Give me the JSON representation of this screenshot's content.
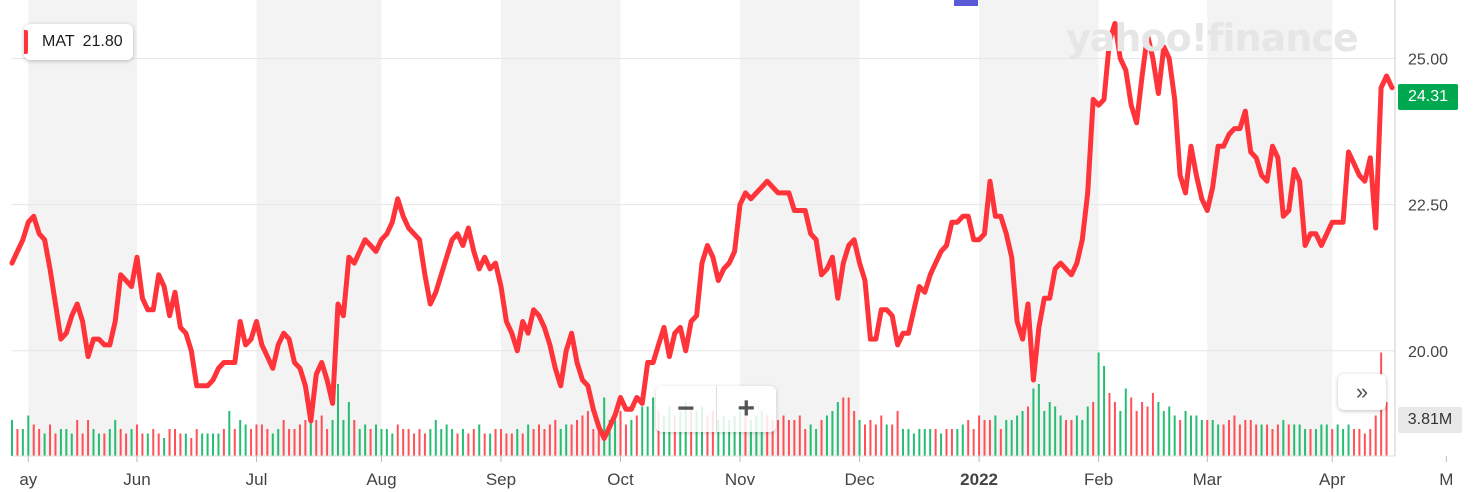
{
  "legend": {
    "symbol": "MAT",
    "value": "21.80",
    "color": "#ff333a"
  },
  "watermark": "yahoo!finance",
  "last_price_badge": "24.31",
  "volume_badge": "3.81M",
  "controls": {
    "zoom_out": "−",
    "zoom_in": "+",
    "scroll_right": "»"
  },
  "colors": {
    "line": "#ff333a",
    "up_volume": "#00b35a",
    "down_volume": "#ff333a",
    "band": "#f3f3f3",
    "badge_green": "#00a84f"
  },
  "chart_data": {
    "type": "line",
    "title": "",
    "xlabel": "",
    "ylabel": "",
    "y_axis_position": "right",
    "ylim": [
      18.2,
      26.0
    ],
    "yticks": [
      "25.00",
      "22.50",
      "20.00"
    ],
    "ytick_values": [
      25.0,
      22.5,
      20.0
    ],
    "xticks": [
      "ay",
      "Jun",
      "Jul",
      "Aug",
      "Sep",
      "Oct",
      "Nov",
      "Dec",
      "2022",
      "Feb",
      "Mar",
      "Apr",
      "M"
    ],
    "xtick_index": [
      3,
      23,
      45,
      68,
      90,
      112,
      134,
      156,
      178,
      200,
      220,
      243,
      264
    ],
    "grid": true,
    "legend_position": "top-left",
    "series": [
      {
        "name": "MAT",
        "values": [
          21.5,
          21.7,
          21.9,
          22.2,
          22.3,
          22.0,
          21.9,
          21.4,
          20.8,
          20.2,
          20.3,
          20.6,
          20.8,
          20.5,
          19.9,
          20.2,
          20.2,
          20.1,
          20.1,
          20.5,
          21.3,
          21.2,
          21.1,
          21.6,
          20.9,
          20.7,
          20.7,
          21.3,
          21.1,
          20.6,
          21.0,
          20.4,
          20.3,
          20.0,
          19.4,
          19.4,
          19.4,
          19.5,
          19.7,
          19.8,
          19.8,
          19.8,
          20.5,
          20.1,
          20.2,
          20.5,
          20.1,
          19.9,
          19.7,
          20.1,
          20.3,
          20.2,
          19.8,
          19.7,
          19.4,
          18.8,
          19.6,
          19.8,
          19.5,
          19.1,
          20.8,
          20.6,
          21.6,
          21.5,
          21.7,
          21.9,
          21.8,
          21.7,
          21.9,
          22.0,
          22.2,
          22.6,
          22.3,
          22.1,
          22.0,
          21.9,
          21.3,
          20.8,
          21.0,
          21.3,
          21.6,
          21.9,
          22.0,
          21.8,
          22.1,
          21.7,
          21.4,
          21.6,
          21.4,
          21.5,
          21.1,
          20.5,
          20.3,
          20.0,
          20.5,
          20.3,
          20.7,
          20.6,
          20.4,
          20.1,
          19.7,
          19.4,
          20.0,
          20.3,
          19.8,
          19.5,
          19.4,
          19.0,
          18.7,
          18.5,
          18.7,
          18.9,
          19.2,
          19.0,
          19.0,
          19.2,
          19.1,
          19.8,
          19.8,
          20.1,
          20.4,
          19.9,
          20.3,
          20.4,
          20.0,
          20.5,
          20.6,
          21.5,
          21.8,
          21.6,
          21.2,
          21.4,
          21.5,
          21.7,
          22.5,
          22.7,
          22.6,
          22.7,
          22.8,
          22.9,
          22.8,
          22.7,
          22.7,
          22.7,
          22.4,
          22.4,
          22.4,
          22.0,
          21.9,
          21.3,
          21.4,
          21.6,
          20.9,
          21.5,
          21.8,
          21.9,
          21.5,
          21.2,
          20.2,
          20.2,
          20.7,
          20.7,
          20.6,
          20.1,
          20.3,
          20.3,
          20.7,
          21.1,
          21.0,
          21.3,
          21.5,
          21.7,
          21.8,
          22.2,
          22.2,
          22.3,
          22.3,
          21.9,
          21.9,
          22.0,
          22.9,
          22.3,
          22.3,
          22.0,
          21.6,
          20.5,
          20.2,
          20.8,
          19.5,
          20.4,
          20.9,
          20.9,
          21.4,
          21.5,
          21.4,
          21.3,
          21.5,
          21.9,
          22.7,
          24.3,
          24.2,
          24.3,
          25.3,
          25.6,
          25.0,
          24.8,
          24.2,
          23.9,
          24.7,
          25.4,
          25.0,
          24.4,
          25.2,
          25.0,
          24.3,
          23.0,
          22.7,
          23.5,
          23.0,
          22.6,
          22.4,
          22.8,
          23.5,
          23.5,
          23.7,
          23.8,
          23.8,
          24.1,
          23.4,
          23.3,
          23.0,
          22.9,
          23.5,
          23.3,
          22.3,
          22.4,
          23.1,
          22.9,
          21.8,
          22.0,
          22.0,
          21.8,
          22.0,
          22.2,
          22.2,
          22.2,
          23.4,
          23.2,
          23.0,
          22.9,
          23.3,
          22.1,
          24.5,
          24.7,
          24.5
        ]
      }
    ],
    "volume": {
      "values": [
        0.8,
        0.6,
        0.6,
        0.9,
        0.7,
        0.6,
        0.5,
        0.7,
        0.5,
        0.6,
        0.6,
        0.5,
        0.8,
        0.5,
        0.8,
        0.6,
        0.5,
        0.5,
        0.6,
        0.8,
        0.6,
        0.5,
        0.6,
        0.7,
        0.5,
        0.5,
        0.6,
        0.5,
        0.4,
        0.6,
        0.6,
        0.5,
        0.5,
        0.4,
        0.6,
        0.5,
        0.5,
        0.5,
        0.5,
        0.6,
        1.0,
        0.6,
        0.8,
        0.7,
        0.6,
        0.7,
        0.7,
        0.6,
        0.5,
        0.6,
        0.8,
        0.6,
        0.6,
        0.7,
        0.8,
        1.0,
        0.8,
        0.9,
        0.6,
        0.8,
        1.6,
        0.8,
        1.2,
        0.8,
        0.6,
        0.7,
        0.6,
        0.7,
        0.6,
        0.6,
        0.5,
        0.7,
        0.6,
        0.6,
        0.5,
        0.6,
        0.5,
        0.6,
        0.8,
        0.6,
        0.7,
        0.6,
        0.5,
        0.6,
        0.5,
        0.6,
        0.7,
        0.5,
        0.5,
        0.6,
        0.6,
        0.5,
        0.5,
        0.6,
        0.5,
        0.7,
        0.6,
        0.7,
        0.6,
        0.7,
        0.8,
        0.6,
        0.7,
        0.7,
        0.8,
        0.9,
        1.0,
        0.6,
        0.7,
        1.3,
        0.8,
        0.9,
        1.0,
        0.7,
        0.8,
        0.9,
        1.1,
        1.1,
        1.3,
        1.0,
        0.9,
        1.1,
        0.9,
        1.0,
        1.2,
        1.1,
        1.0,
        1.1,
        0.9,
        1.0,
        0.8,
        0.9,
        0.8,
        0.9,
        1.0,
        0.9,
        0.8,
        0.9,
        1.0,
        0.9,
        0.8,
        0.8,
        0.9,
        0.8,
        0.8,
        0.9,
        0.6,
        0.7,
        0.6,
        0.8,
        0.9,
        1.0,
        1.2,
        1.3,
        1.3,
        1.0,
        0.8,
        0.7,
        0.8,
        0.7,
        0.9,
        0.7,
        0.7,
        1.0,
        0.6,
        0.6,
        0.5,
        0.6,
        0.6,
        0.6,
        0.6,
        0.5,
        0.6,
        0.6,
        0.6,
        0.7,
        0.8,
        0.6,
        0.9,
        0.8,
        0.8,
        0.9,
        0.6,
        0.8,
        0.8,
        0.9,
        1.0,
        1.1,
        1.5,
        1.6,
        1.0,
        1.2,
        1.1,
        0.9,
        0.8,
        0.8,
        0.9,
        0.8,
        1.1,
        1.2,
        2.3,
        2.0,
        1.4,
        1.2,
        1.0,
        1.5,
        1.3,
        1.0,
        1.2,
        1.1,
        1.4,
        1.2,
        1.0,
        1.1,
        0.9,
        0.8,
        1.0,
        0.9,
        0.9,
        0.8,
        0.8,
        0.8,
        0.7,
        0.7,
        0.8,
        0.9,
        0.7,
        0.8,
        0.8,
        0.7,
        0.7,
        0.7,
        0.6,
        0.7,
        0.8,
        0.7,
        0.7,
        0.7,
        0.6,
        0.6,
        0.6,
        0.7,
        0.7,
        0.6,
        0.7,
        0.6,
        0.7,
        0.6,
        0.6,
        0.5,
        0.6,
        0.9,
        2.3,
        1.2
      ],
      "up": [
        true,
        false,
        true,
        true,
        false,
        false,
        true,
        false,
        false,
        true,
        true,
        true,
        false,
        false,
        false,
        true,
        true,
        false,
        true,
        true,
        false,
        false,
        true,
        false,
        false,
        true,
        false,
        false,
        true,
        false,
        false,
        false,
        true,
        false,
        false,
        true,
        true,
        true,
        true,
        false,
        true,
        false,
        true,
        true,
        false,
        false,
        false,
        false,
        true,
        true,
        false,
        false,
        false,
        false,
        false,
        true,
        false,
        false,
        false,
        true,
        true,
        true,
        true,
        false,
        true,
        true,
        false,
        true,
        true,
        true,
        true,
        false,
        false,
        false,
        false,
        false,
        false,
        true,
        true,
        true,
        true,
        true,
        false,
        true,
        false,
        false,
        true,
        false,
        true,
        false,
        false,
        false,
        false,
        true,
        false,
        true,
        false,
        false,
        false,
        false,
        false,
        true,
        true,
        false,
        false,
        false,
        false,
        false,
        false,
        true,
        true,
        true,
        false,
        false,
        true,
        false,
        true,
        true,
        true,
        false,
        true,
        true,
        false,
        true,
        true,
        false,
        true,
        true,
        false,
        false,
        true,
        true,
        true,
        true,
        true,
        false,
        true,
        true,
        true,
        false,
        false,
        false,
        false,
        false,
        false,
        false,
        false,
        true,
        true,
        false,
        true,
        true,
        true,
        false,
        false,
        false,
        true,
        false,
        false,
        false,
        false,
        true,
        false,
        false,
        true,
        true,
        true,
        true,
        true,
        true,
        false,
        true,
        false,
        false,
        true,
        true,
        false,
        false,
        false,
        false,
        false,
        true,
        false,
        true,
        true,
        true,
        true,
        false,
        true,
        true,
        true,
        true,
        true,
        true,
        false,
        false,
        true,
        true,
        true,
        false,
        true,
        true,
        false,
        false,
        true,
        true,
        false,
        false,
        false,
        false,
        false,
        true,
        true,
        true,
        true,
        false,
        true,
        true,
        true,
        true,
        false,
        true,
        true,
        false,
        false,
        false,
        false,
        false,
        false,
        false,
        true,
        false,
        false,
        false,
        true,
        false,
        true,
        true,
        true,
        false,
        true,
        true,
        true,
        false,
        true,
        true,
        true,
        false
      ]
    }
  }
}
